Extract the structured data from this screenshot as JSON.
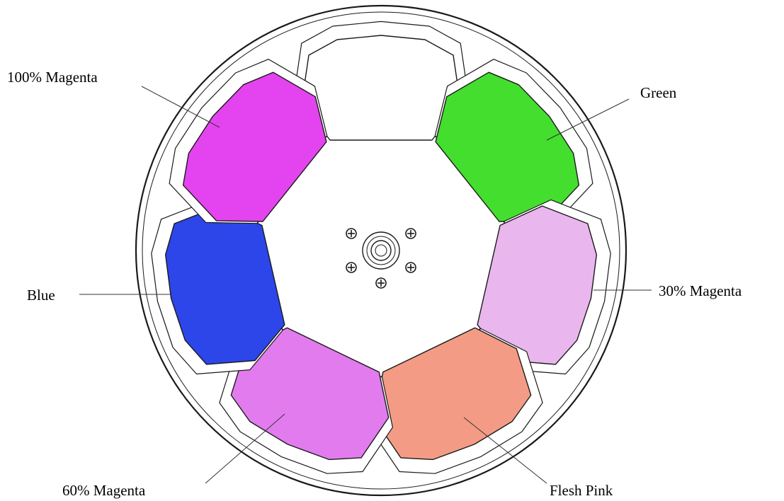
{
  "diagram": {
    "labels": [
      {
        "id": "magenta-100",
        "text": "100% Magenta"
      },
      {
        "id": "green",
        "text": "Green"
      },
      {
        "id": "blue",
        "text": "Blue"
      },
      {
        "id": "magenta-30",
        "text": "30% Magenta"
      },
      {
        "id": "magenta-60",
        "text": "60% Magenta"
      },
      {
        "id": "flesh-pink",
        "text": "Flesh Pink"
      }
    ],
    "filters": [
      {
        "name": "open",
        "color": "#ffffff"
      },
      {
        "name": "Green",
        "color": "#44de2f"
      },
      {
        "name": "30% Magenta",
        "color": "#e9b6ee"
      },
      {
        "name": "Flesh Pink",
        "color": "#f49b86"
      },
      {
        "name": "60% Magenta",
        "color": "#e27cee"
      },
      {
        "name": "Blue",
        "color": "#2c46ea"
      },
      {
        "name": "100% Magenta",
        "color": "#e444ef"
      }
    ]
  }
}
